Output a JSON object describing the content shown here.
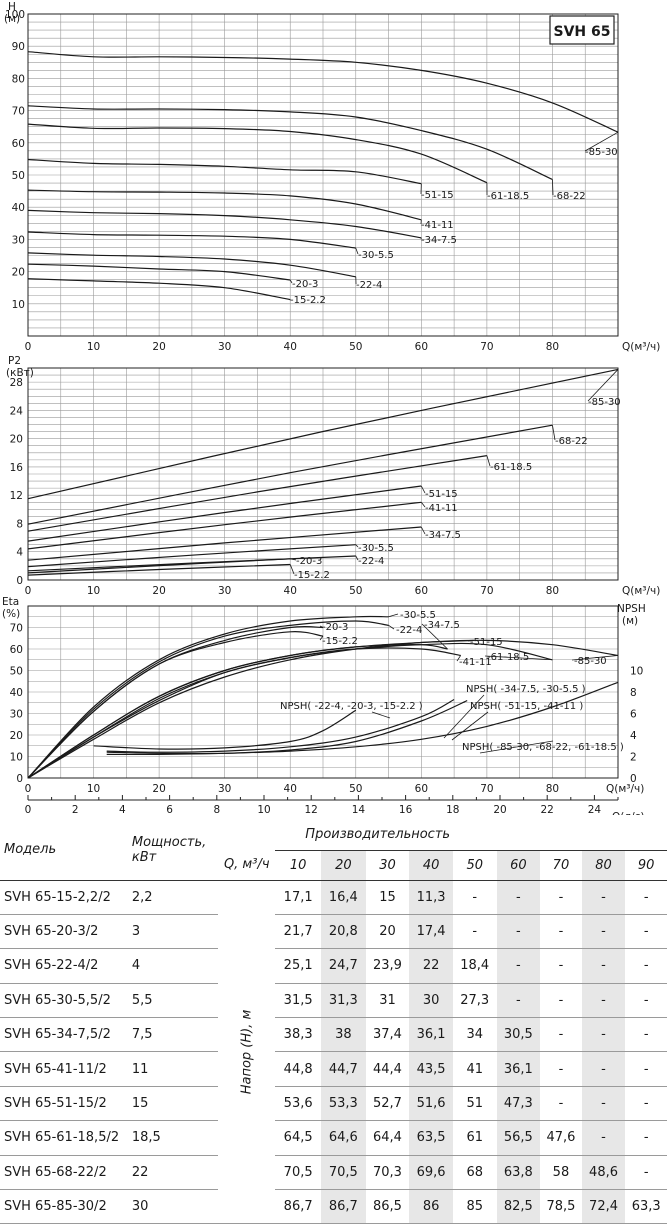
{
  "chart_data": [
    {
      "type": "line",
      "title": "SVH 65",
      "xlabel": "Q(м³/ч)",
      "ylabel": "H (м)",
      "xlim": [
        0,
        90
      ],
      "ylim": [
        0,
        100
      ],
      "x_ticks": [
        0,
        10,
        20,
        30,
        40,
        50,
        60,
        70,
        80
      ],
      "y_ticks": [
        10,
        20,
        30,
        40,
        50,
        60,
        70,
        80,
        90,
        100
      ],
      "series": [
        {
          "name": "-15-2.2",
          "x": [
            0,
            10,
            20,
            30,
            40
          ],
          "y": [
            17.8,
            17.1,
            16.4,
            15.0,
            11.3
          ]
        },
        {
          "name": "-20-3",
          "x": [
            0,
            10,
            20,
            30,
            40
          ],
          "y": [
            22.3,
            21.7,
            20.8,
            20.0,
            17.4
          ]
        },
        {
          "name": "-22-4",
          "x": [
            0,
            10,
            20,
            30,
            40,
            50
          ],
          "y": [
            25.8,
            25.1,
            24.7,
            23.9,
            22.0,
            18.4
          ]
        },
        {
          "name": "-30-5.5",
          "x": [
            0,
            10,
            20,
            30,
            40,
            50
          ],
          "y": [
            32.3,
            31.5,
            31.3,
            31.0,
            30.0,
            27.3
          ]
        },
        {
          "name": "-34-7.5",
          "x": [
            0,
            10,
            20,
            30,
            40,
            50,
            60
          ],
          "y": [
            39.0,
            38.3,
            38.0,
            37.4,
            36.1,
            34.0,
            30.5
          ]
        },
        {
          "name": "-41-11",
          "x": [
            0,
            10,
            20,
            30,
            40,
            50,
            60
          ],
          "y": [
            45.3,
            44.8,
            44.7,
            44.4,
            43.5,
            41.0,
            36.1
          ]
        },
        {
          "name": "-51-15",
          "x": [
            0,
            10,
            20,
            30,
            40,
            50,
            60
          ],
          "y": [
            54.8,
            53.6,
            53.3,
            52.7,
            51.6,
            51.0,
            47.3
          ]
        },
        {
          "name": "-61-18.5",
          "x": [
            0,
            10,
            20,
            30,
            40,
            50,
            60,
            70
          ],
          "y": [
            65.8,
            64.5,
            64.6,
            64.4,
            63.5,
            61.0,
            56.5,
            47.6
          ]
        },
        {
          "name": "-68-22",
          "x": [
            0,
            10,
            20,
            30,
            40,
            50,
            60,
            70,
            80
          ],
          "y": [
            71.5,
            70.5,
            70.5,
            70.3,
            69.6,
            68.0,
            63.8,
            58.0,
            48.6
          ]
        },
        {
          "name": "-85-30",
          "x": [
            0,
            10,
            20,
            30,
            40,
            50,
            60,
            70,
            80,
            90
          ],
          "y": [
            88.3,
            86.7,
            86.7,
            86.5,
            86.0,
            85.0,
            82.5,
            78.5,
            72.4,
            63.3
          ]
        }
      ]
    },
    {
      "type": "line",
      "xlabel": "Q(м³/ч)",
      "ylabel": "P2 (кВт)",
      "xlim": [
        0,
        90
      ],
      "ylim": [
        0,
        30
      ],
      "x_ticks": [
        0,
        10,
        20,
        30,
        40,
        50,
        60,
        70,
        80
      ],
      "y_ticks": [
        0,
        4,
        8,
        12,
        16,
        20,
        24,
        28
      ],
      "series": [
        {
          "name": "-15-2.2",
          "x": [
            0,
            40
          ],
          "y": [
            0.7,
            2.2
          ]
        },
        {
          "name": "-20-3",
          "x": [
            0,
            40
          ],
          "y": [
            1.0,
            3.0
          ]
        },
        {
          "name": "-22-4",
          "x": [
            0,
            50
          ],
          "y": [
            1.3,
            3.4
          ]
        },
        {
          "name": "-30-5.5",
          "x": [
            0,
            50
          ],
          "y": [
            1.9,
            5.0
          ]
        },
        {
          "name": "-34-7.5",
          "x": [
            0,
            60
          ],
          "y": [
            2.8,
            7.5
          ]
        },
        {
          "name": "-41-11",
          "x": [
            0,
            60
          ],
          "y": [
            4.4,
            11.0
          ]
        },
        {
          "name": "-51-15",
          "x": [
            0,
            60
          ],
          "y": [
            5.5,
            13.3
          ]
        },
        {
          "name": "-61-18.5",
          "x": [
            0,
            70
          ],
          "y": [
            6.9,
            17.6
          ]
        },
        {
          "name": "-68-22",
          "x": [
            0,
            80
          ],
          "y": [
            7.9,
            21.9
          ]
        },
        {
          "name": "-85-30",
          "x": [
            0,
            90
          ],
          "y": [
            11.5,
            29.8
          ]
        }
      ]
    },
    {
      "type": "line",
      "xlabel": "Q(м³/ч)",
      "x2label": "Q(л/с)",
      "ylabel": "Eta (%)",
      "y2label": "NPSH (м)",
      "xlim": [
        0,
        90
      ],
      "ylim": [
        0,
        80
      ],
      "y2lim": [
        0,
        16
      ],
      "x_ticks": [
        0,
        10,
        20,
        30,
        40,
        50,
        60,
        70,
        80
      ],
      "x2_ticks": [
        0,
        2,
        4,
        6,
        8,
        10,
        12,
        14,
        16,
        18,
        20,
        22,
        24
      ],
      "y_ticks": [
        0,
        10,
        20,
        30,
        40,
        50,
        60,
        70
      ],
      "y2_ticks": [
        0,
        2,
        4,
        6,
        8,
        10
      ],
      "eta_series": [
        {
          "name": "-30-5.5",
          "x": [
            0,
            10,
            20,
            30,
            40,
            50,
            55
          ],
          "y": [
            0,
            33,
            55,
            67,
            73,
            75,
            75
          ]
        },
        {
          "name": "-22-4",
          "x": [
            0,
            10,
            20,
            30,
            40,
            50,
            55
          ],
          "y": [
            0,
            32,
            54,
            66,
            71,
            73,
            71
          ]
        },
        {
          "name": "-20-3",
          "x": [
            0,
            10,
            20,
            30,
            40,
            45
          ],
          "y": [
            0,
            31,
            53,
            64,
            70,
            70
          ]
        },
        {
          "name": "-15-2.2",
          "x": [
            0,
            10,
            20,
            30,
            40,
            45
          ],
          "y": [
            0,
            31,
            53,
            63,
            68,
            66
          ]
        },
        {
          "name": "-34-7.5",
          "x": [
            0,
            10,
            20,
            30,
            40,
            50,
            60,
            64
          ],
          "y": [
            0,
            20,
            38,
            50,
            57,
            61,
            62,
            60
          ]
        },
        {
          "name": "-51-15",
          "x": [
            0,
            10,
            20,
            30,
            40,
            50,
            60,
            68
          ],
          "y": [
            0,
            20,
            38,
            50,
            57,
            61,
            63,
            64
          ]
        },
        {
          "name": "-41-11",
          "x": [
            0,
            10,
            20,
            30,
            40,
            50,
            60,
            66
          ],
          "y": [
            0,
            19,
            36,
            49,
            56,
            60,
            60,
            57
          ]
        },
        {
          "name": "-61-18.5",
          "x": [
            0,
            10,
            20,
            30,
            40,
            50,
            60,
            70,
            80
          ],
          "y": [
            0,
            19,
            37,
            49,
            56,
            60,
            62,
            62,
            55
          ]
        },
        {
          "name": "-85-30",
          "x": [
            0,
            10,
            20,
            30,
            40,
            50,
            60,
            70,
            80,
            90
          ],
          "y": [
            0,
            18,
            35,
            47,
            55,
            60,
            63,
            64,
            62,
            57
          ]
        }
      ],
      "npsh_series": [
        {
          "name": "NPSH( -22-4, -20-3, -15-2.2 )",
          "x": [
            10,
            20,
            30,
            40,
            45,
            50
          ],
          "y": [
            3.0,
            2.7,
            2.8,
            3.4,
            4.4,
            6.3
          ]
        },
        {
          "name": "NPSH( -34-7.5, -30-5.5 )",
          "x": [
            12,
            20,
            30,
            40,
            50,
            60,
            65
          ],
          "y": [
            2.5,
            2.4,
            2.5,
            2.9,
            3.8,
            5.7,
            7.3
          ]
        },
        {
          "name": "NPSH( -51-15, -41-11 )",
          "x": [
            12,
            20,
            30,
            40,
            50,
            60,
            67
          ],
          "y": [
            2.4,
            2.3,
            2.3,
            2.6,
            3.4,
            5.3,
            7.2
          ]
        },
        {
          "name": "NPSH( -85-30, -68-22, -61-18.5 )",
          "x": [
            12,
            20,
            30,
            40,
            50,
            60,
            70,
            80,
            90
          ],
          "y": [
            2.2,
            2.2,
            2.3,
            2.5,
            2.9,
            3.6,
            4.8,
            6.6,
            8.9
          ]
        }
      ]
    },
    {
      "type": "table",
      "headers": {
        "model": "Модель",
        "power": "Мощность,",
        "power_unit": "кВт",
        "perf": "Производительность",
        "q": "Q, м³/ч",
        "head": "Напор (H), м",
        "flows": [
          "10",
          "20",
          "30",
          "40",
          "50",
          "60",
          "70",
          "80",
          "90"
        ]
      },
      "rows": [
        {
          "model": "SVH 65-15-2,2/2",
          "power": "2,2",
          "values": [
            "17,1",
            "16,4",
            "15",
            "11,3",
            "-",
            "-",
            "-",
            "-",
            "-"
          ]
        },
        {
          "model": "SVH 65-20-3/2",
          "power": "3",
          "values": [
            "21,7",
            "20,8",
            "20",
            "17,4",
            "-",
            "-",
            "-",
            "-",
            "-"
          ]
        },
        {
          "model": "SVH 65-22-4/2",
          "power": "4",
          "values": [
            "25,1",
            "24,7",
            "23,9",
            "22",
            "18,4",
            "-",
            "-",
            "-",
            "-"
          ]
        },
        {
          "model": "SVH 65-30-5,5/2",
          "power": "5,5",
          "values": [
            "31,5",
            "31,3",
            "31",
            "30",
            "27,3",
            "-",
            "-",
            "-",
            "-"
          ]
        },
        {
          "model": "SVH 65-34-7,5/2",
          "power": "7,5",
          "values": [
            "38,3",
            "38",
            "37,4",
            "36,1",
            "34",
            "30,5",
            "-",
            "-",
            "-"
          ]
        },
        {
          "model": "SVH 65-41-11/2",
          "power": "11",
          "values": [
            "44,8",
            "44,7",
            "44,4",
            "43,5",
            "41",
            "36,1",
            "-",
            "-",
            "-"
          ]
        },
        {
          "model": "SVH 65-51-15/2",
          "power": "15",
          "values": [
            "53,6",
            "53,3",
            "52,7",
            "51,6",
            "51",
            "47,3",
            "-",
            "-",
            "-"
          ]
        },
        {
          "model": "SVH 65-61-18,5/2",
          "power": "18,5",
          "values": [
            "64,5",
            "64,6",
            "64,4",
            "63,5",
            "61",
            "56,5",
            "47,6",
            "-",
            "-"
          ]
        },
        {
          "model": "SVH 65-68-22/2",
          "power": "22",
          "values": [
            "70,5",
            "70,5",
            "70,3",
            "69,6",
            "68",
            "63,8",
            "58",
            "48,6",
            "-"
          ]
        },
        {
          "model": "SVH 65-85-30/2",
          "power": "30",
          "values": [
            "86,7",
            "86,7",
            "86,5",
            "86",
            "85",
            "82,5",
            "78,5",
            "72,4",
            "63,3"
          ]
        }
      ]
    }
  ],
  "colors": {
    "line": "#1a1a1a",
    "grid": "#9a9a9a",
    "shade": "#e7e7e7"
  }
}
